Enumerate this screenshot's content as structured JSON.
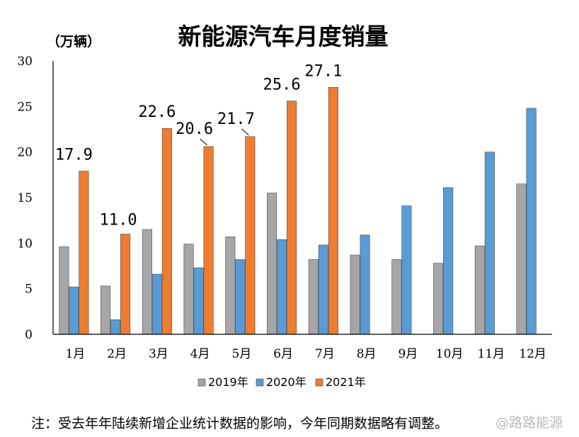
{
  "chart_data": {
    "type": "bar",
    "title": "新能源汽车月度销量",
    "unit_label": "（万辆）",
    "categories": [
      "1月",
      "2月",
      "3月",
      "4月",
      "5月",
      "6月",
      "7月",
      "8月",
      "9月",
      "10月",
      "11月",
      "12月"
    ],
    "series": [
      {
        "name": "2019年",
        "color": "#a6a6a6",
        "values": [
          9.6,
          5.3,
          11.5,
          9.9,
          10.7,
          15.5,
          8.2,
          8.7,
          8.2,
          7.8,
          9.7,
          16.5
        ]
      },
      {
        "name": "2020年",
        "color": "#5b9bd5",
        "values": [
          5.2,
          1.6,
          6.6,
          7.3,
          8.2,
          10.4,
          9.8,
          10.9,
          14.1,
          16.1,
          20.0,
          24.8
        ]
      },
      {
        "name": "2021年",
        "color": "#ed7d31",
        "values": [
          17.9,
          11.0,
          22.6,
          20.6,
          21.7,
          25.6,
          27.1,
          null,
          null,
          null,
          null,
          null
        ]
      }
    ],
    "data_labels": [
      "17.9",
      "11.0",
      "22.6",
      "20.6",
      "21.7",
      "25.6",
      "27.1"
    ],
    "yticks": [
      "0",
      "5",
      "10",
      "15",
      "20",
      "25",
      "30"
    ],
    "ylim": [
      0,
      30
    ],
    "xlabel": "",
    "ylabel": "",
    "grid": false,
    "legend_position": "bottom"
  },
  "note": "注：受去年年陆续新增企业统计数据的影响，今年同期数据略有调整。",
  "watermark": "@路路能源"
}
